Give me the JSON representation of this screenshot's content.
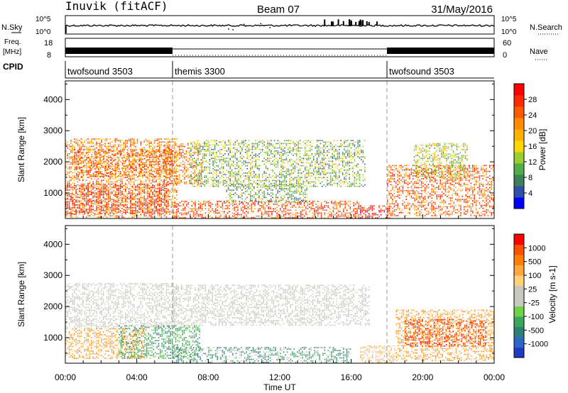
{
  "header": {
    "station": "Inuvik (fitACF)",
    "beam": "Beam 07",
    "date": "31/May/2016"
  },
  "top_panels": {
    "nsky": {
      "left_label": "N.Sky",
      "right_label": "N.Search",
      "left_ticks": [
        "10^5",
        "10^0"
      ],
      "right_ticks": [
        "10^5",
        "10^0"
      ]
    },
    "freq": {
      "left_label_line1": "Freq.",
      "left_label_line2": "[MHz]",
      "right_label": "Nave",
      "left_ticks": [
        "18",
        "8"
      ],
      "right_ticks": [
        "60",
        "0"
      ]
    },
    "cpid": {
      "label": "CPID",
      "segments": [
        {
          "name": "twofsound 3503",
          "start_hour": 0,
          "end_hour": 6
        },
        {
          "name": "themis 3300",
          "start_hour": 6,
          "end_hour": 18
        },
        {
          "name": "twofsound 3503",
          "start_hour": 18,
          "end_hour": 24
        }
      ]
    }
  },
  "chart_data": [
    {
      "type": "heatmap",
      "title": "",
      "xlabel": "",
      "ylabel": "Slant Range [km]",
      "xlim_hours": [
        0,
        24
      ],
      "ylim_km": [
        180,
        4600
      ],
      "yticks": [
        1000,
        2000,
        3000,
        4000
      ],
      "colorbar": {
        "label": "Power [dB]",
        "ticks": [
          "4",
          "8",
          "12",
          "16",
          "20",
          "24",
          "28"
        ],
        "range": [
          0,
          30
        ],
        "colors": [
          "#0000ff",
          "#2e4ea8",
          "#3c7f5a",
          "#4fae45",
          "#9acd32",
          "#ffd700",
          "#ffb000",
          "#ff8c00",
          "#ff5a00",
          "#ff2a00",
          "#ff0000"
        ]
      },
      "regions": [
        {
          "t0": 0.0,
          "t1": 6.2,
          "r0": 220,
          "r1": 2750,
          "level": 0.72
        },
        {
          "t0": 0.0,
          "t1": 5.8,
          "r0": 350,
          "r1": 1300,
          "level": 0.95
        },
        {
          "t0": 0.5,
          "t1": 6.0,
          "r0": 1500,
          "r1": 2400,
          "level": 0.78
        },
        {
          "t0": 5.5,
          "t1": 7.6,
          "r0": 1300,
          "r1": 2600,
          "level": 0.75
        },
        {
          "t0": 6.0,
          "t1": 16.5,
          "r0": 220,
          "r1": 750,
          "level": 0.85
        },
        {
          "t0": 7.0,
          "t1": 16.8,
          "r0": 1200,
          "r1": 2700,
          "level": 0.35
        },
        {
          "t0": 9.0,
          "t1": 13.5,
          "r0": 700,
          "r1": 1300,
          "level": 0.3
        },
        {
          "t0": 16.2,
          "t1": 18.2,
          "r0": 220,
          "r1": 600,
          "level": 1.0
        },
        {
          "t0": 18.0,
          "t1": 24.0,
          "r0": 250,
          "r1": 1900,
          "level": 0.8
        },
        {
          "t0": 19.5,
          "t1": 22.5,
          "r0": 1500,
          "r1": 2600,
          "level": 0.45
        }
      ]
    },
    {
      "type": "heatmap",
      "title": "",
      "xlabel": "Time UT",
      "ylabel": "Slant Range [km]",
      "xlim_hours": [
        0,
        24
      ],
      "ylim_km": [
        180,
        4600
      ],
      "yticks": [
        1000,
        2000,
        3000,
        4000
      ],
      "xticklabels": [
        "00:00",
        "04:00",
        "08:00",
        "12:00",
        "16:00",
        "20:00",
        "00:00"
      ],
      "colorbar": {
        "label": "Velocity [m s-1]",
        "ticks": [
          "1000",
          "500",
          "100",
          "25",
          "-25",
          "-100",
          "-500",
          "-1000"
        ],
        "colors": [
          "#1f3bbf",
          "#2d66c6",
          "#2f7f79",
          "#3aa75f",
          "#6fd24a",
          "#c8c8c0",
          "#c8c8c0",
          "#ffd27a",
          "#ffa640",
          "#ff8000",
          "#ff4f00",
          "#ff0000"
        ]
      },
      "regions": [
        {
          "t0": 0.0,
          "t1": 6.2,
          "r0": 1300,
          "r1": 2750,
          "kind": "gray"
        },
        {
          "t0": 0.0,
          "t1": 4.5,
          "r0": 350,
          "r1": 1300,
          "kind": "orange"
        },
        {
          "t0": 3.0,
          "t1": 7.5,
          "r0": 350,
          "r1": 1400,
          "kind": "green"
        },
        {
          "t0": 6.0,
          "t1": 16.0,
          "r0": 220,
          "r1": 700,
          "kind": "darkgreen"
        },
        {
          "t0": 6.0,
          "t1": 17.0,
          "r0": 1400,
          "r1": 2700,
          "kind": "gray"
        },
        {
          "t0": 16.5,
          "t1": 18.5,
          "r0": 220,
          "r1": 750,
          "kind": "yellow"
        },
        {
          "t0": 18.5,
          "t1": 24.0,
          "r0": 250,
          "r1": 1900,
          "kind": "orange"
        },
        {
          "t0": 19.0,
          "t1": 23.5,
          "r0": 700,
          "r1": 1600,
          "kind": "red"
        }
      ]
    }
  ]
}
